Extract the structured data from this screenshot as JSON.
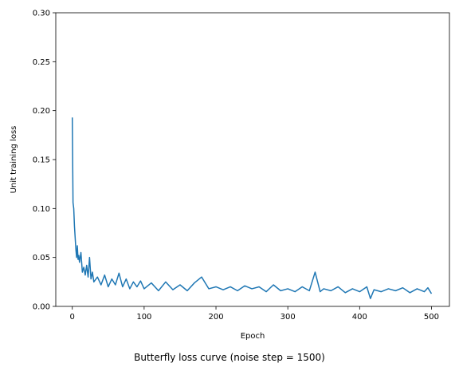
{
  "chart_data": {
    "type": "line",
    "title": "Butterfly loss curve (noise step = 1500)",
    "xlabel": "Epoch",
    "ylabel": "Unit training loss",
    "xlim": [
      -23,
      525
    ],
    "ylim": [
      0,
      0.3
    ],
    "xticks": [
      0,
      100,
      200,
      300,
      400,
      500
    ],
    "yticks": [
      0.0,
      0.05,
      0.1,
      0.15,
      0.2,
      0.25,
      0.3
    ],
    "ytick_labels": [
      "0.00",
      "0.05",
      "0.10",
      "0.15",
      "0.20",
      "0.25",
      "0.30"
    ],
    "grid": false,
    "series": [
      {
        "color": "#1f77b4",
        "x": [
          0,
          1,
          2,
          3,
          4,
          5,
          6,
          7,
          8,
          9,
          10,
          12,
          14,
          16,
          18,
          20,
          22,
          24,
          26,
          28,
          30,
          35,
          40,
          45,
          50,
          55,
          60,
          65,
          70,
          75,
          80,
          85,
          90,
          95,
          100,
          110,
          120,
          130,
          140,
          150,
          160,
          170,
          180,
          190,
          200,
          210,
          220,
          230,
          240,
          250,
          260,
          270,
          280,
          290,
          300,
          310,
          320,
          330,
          338,
          345,
          350,
          360,
          370,
          380,
          390,
          400,
          410,
          415,
          420,
          430,
          440,
          450,
          460,
          470,
          480,
          490,
          495,
          500
        ],
        "y": [
          0.193,
          0.106,
          0.1,
          0.082,
          0.07,
          0.058,
          0.05,
          0.062,
          0.048,
          0.052,
          0.045,
          0.055,
          0.035,
          0.04,
          0.032,
          0.042,
          0.03,
          0.05,
          0.028,
          0.035,
          0.025,
          0.03,
          0.022,
          0.032,
          0.02,
          0.028,
          0.022,
          0.034,
          0.02,
          0.028,
          0.018,
          0.025,
          0.02,
          0.026,
          0.018,
          0.024,
          0.016,
          0.025,
          0.017,
          0.022,
          0.016,
          0.024,
          0.03,
          0.018,
          0.02,
          0.017,
          0.02,
          0.016,
          0.021,
          0.018,
          0.02,
          0.015,
          0.022,
          0.016,
          0.018,
          0.015,
          0.02,
          0.016,
          0.035,
          0.015,
          0.018,
          0.016,
          0.02,
          0.014,
          0.018,
          0.015,
          0.02,
          0.008,
          0.017,
          0.015,
          0.018,
          0.016,
          0.019,
          0.014,
          0.018,
          0.015,
          0.019,
          0.013
        ]
      }
    ]
  }
}
